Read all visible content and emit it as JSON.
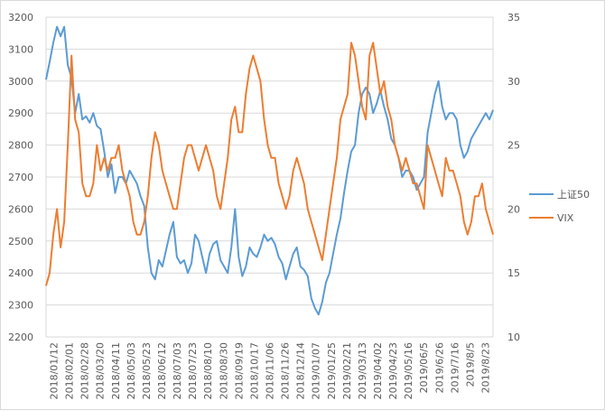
{
  "chart_data": {
    "type": "line",
    "title": "",
    "xlabel": "",
    "ylabel": "",
    "grid": true,
    "legend_position": "right",
    "x_tick_labels": [
      "2018/01/12",
      "2018/02/01",
      "2018/02/28",
      "2018/03/20",
      "2018/04/11",
      "2018/05/03",
      "2018/05/23",
      "2018/06/12",
      "2018/07/03",
      "2018/07/23",
      "2018/08/10",
      "2018/08/30",
      "2018/09/19",
      "2018/10/17",
      "2018/11/06",
      "2018/11/26",
      "2018/12/14",
      "2019/01/07",
      "2019/01/25",
      "2019/02/21",
      "2019/03/13",
      "2019/04/02",
      "2019/04/23",
      "2019/05/16",
      "2019/06/5",
      "2019/6/26",
      "2019/7/16",
      "2019/8/5",
      "2019/8/23"
    ],
    "y_left": {
      "min": 2200,
      "max": 3200,
      "ticks": [
        "2200",
        "2300",
        "2400",
        "2500",
        "2600",
        "2700",
        "2800",
        "2900",
        "3000",
        "3100",
        "3200"
      ]
    },
    "y_right": {
      "min": 10,
      "max": 35,
      "ticks": [
        "10",
        "15",
        "20",
        "25",
        "30",
        "35"
      ]
    },
    "series": [
      {
        "name": "上证50",
        "axis": "left",
        "color": "#5B9BD5",
        "values": [
          3005,
          3060,
          3120,
          3170,
          3140,
          3170,
          3050,
          3010,
          2900,
          2960,
          2880,
          2890,
          2870,
          2900,
          2860,
          2850,
          2780,
          2700,
          2740,
          2650,
          2700,
          2700,
          2680,
          2720,
          2700,
          2680,
          2640,
          2610,
          2480,
          2400,
          2380,
          2440,
          2420,
          2470,
          2520,
          2560,
          2450,
          2430,
          2440,
          2400,
          2430,
          2520,
          2500,
          2450,
          2400,
          2460,
          2490,
          2500,
          2440,
          2420,
          2400,
          2480,
          2600,
          2450,
          2390,
          2420,
          2480,
          2460,
          2450,
          2480,
          2520,
          2500,
          2510,
          2490,
          2450,
          2430,
          2380,
          2420,
          2460,
          2480,
          2420,
          2410,
          2390,
          2320,
          2290,
          2270,
          2310,
          2370,
          2400,
          2460,
          2520,
          2570,
          2650,
          2720,
          2780,
          2800,
          2900,
          2960,
          2980,
          2960,
          2900,
          2930,
          2970,
          2920,
          2880,
          2820,
          2800,
          2760,
          2700,
          2720,
          2720,
          2700,
          2660,
          2680,
          2700,
          2840,
          2900,
          2960,
          3000,
          2920,
          2880,
          2900,
          2900,
          2880,
          2800,
          2760,
          2780,
          2820,
          2840,
          2860,
          2880,
          2900,
          2880,
          2910
        ]
      },
      {
        "name": "VIX",
        "axis": "right",
        "color": "#ED7D31",
        "values": [
          14,
          15,
          18,
          20,
          17,
          19,
          25,
          32,
          27,
          26,
          22,
          21,
          21,
          22,
          25,
          23,
          24,
          23,
          24,
          24,
          25,
          23,
          22,
          21,
          19,
          18,
          18,
          19,
          21,
          24,
          26,
          25,
          23,
          22,
          21,
          20,
          20,
          22,
          24,
          25,
          25,
          24,
          23,
          24,
          25,
          24,
          23,
          21,
          20,
          22,
          24,
          27,
          28,
          26,
          26,
          29,
          31,
          32,
          31,
          30,
          27,
          25,
          24,
          24,
          22,
          21,
          20,
          21,
          23,
          24,
          23,
          22,
          20,
          19,
          18,
          17,
          16,
          18,
          20,
          22,
          24,
          27,
          28,
          29,
          33,
          32,
          30,
          28,
          27,
          32,
          33,
          31,
          29,
          30,
          28,
          27,
          25,
          24,
          23,
          24,
          23,
          22,
          22,
          21,
          20,
          25,
          24,
          23,
          22,
          21,
          24,
          23,
          23,
          22,
          21,
          19,
          18,
          19,
          21,
          21,
          22,
          20,
          19,
          18
        ]
      }
    ]
  }
}
